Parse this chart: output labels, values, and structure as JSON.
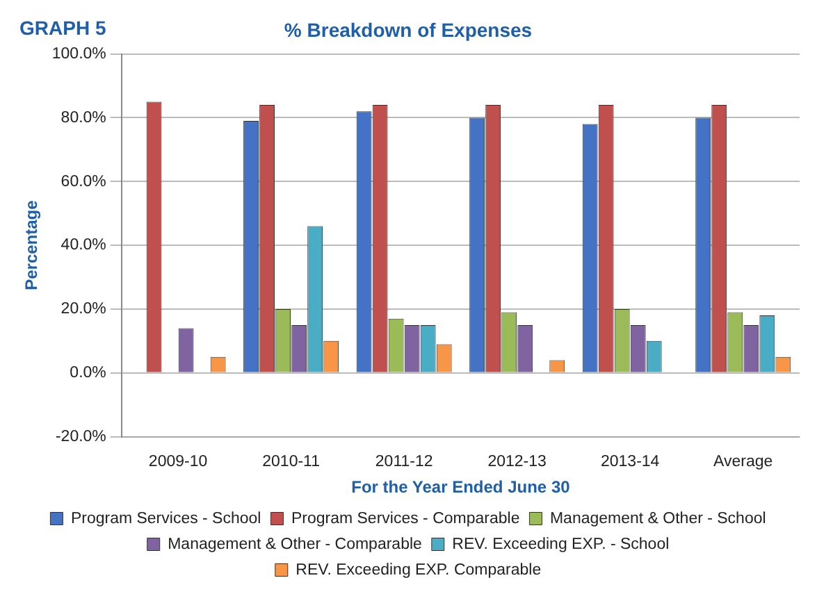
{
  "chart_data": {
    "type": "bar",
    "title": "% Breakdown of Expenses",
    "annotations": [
      "GRAPH 5"
    ],
    "xlabel": "For the Year Ended June 30",
    "ylabel": "Percentage",
    "categories": [
      "2009-10",
      "2010-11",
      "2011-12",
      "2012-13",
      "2013-14",
      "Average"
    ],
    "series": [
      {
        "name": "Program Services - School",
        "color": "#4472c4",
        "values": [
          0,
          79,
          82,
          80,
          78,
          80
        ]
      },
      {
        "name": "Program Services - Comparable",
        "color": "#c0504d",
        "values": [
          85,
          84,
          84,
          84,
          84,
          84
        ]
      },
      {
        "name": "Management & Other - School",
        "color": "#9bbb59",
        "values": [
          0,
          20,
          17,
          19,
          20,
          19
        ]
      },
      {
        "name": "Management & Other - Comparable",
        "color": "#8064a2",
        "values": [
          14,
          15,
          15,
          15,
          15,
          15
        ]
      },
      {
        "name": "REV. Exceeding EXP. - School",
        "color": "#4bacc6",
        "values": [
          0,
          46,
          15,
          0,
          10,
          18
        ]
      },
      {
        "name": "REV. Exceeding EXP. Comparable",
        "color": "#f79646",
        "values": [
          5,
          10,
          9,
          4,
          0,
          5
        ]
      }
    ],
    "ylim": [
      -20,
      100
    ],
    "yticks": [
      {
        "value": -20,
        "label": "-20.0%"
      },
      {
        "value": 0,
        "label": "0.0%"
      },
      {
        "value": 20,
        "label": "20.0%"
      },
      {
        "value": 40,
        "label": "40.0%"
      },
      {
        "value": 60,
        "label": "60.0%"
      },
      {
        "value": 80,
        "label": "80.0%"
      },
      {
        "value": 100,
        "label": "100.0%"
      }
    ],
    "grid": "y",
    "legend": "bottom"
  }
}
